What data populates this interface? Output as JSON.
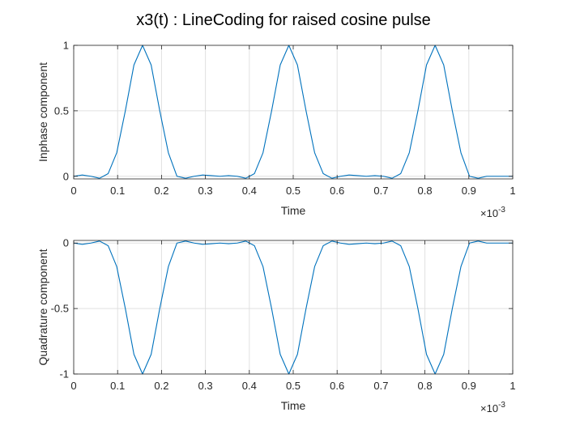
{
  "figure": {
    "title": "x3(t) : LineCoding for raised cosine pulse",
    "line_color": "#0072BD",
    "grid_color": "#e0e0e0",
    "axis_color": "#262626"
  },
  "chart_data": [
    {
      "type": "line",
      "name": "inphase",
      "xlabel": "Time",
      "ylabel": "Inphase component",
      "x_exponent_base": "×10",
      "x_exponent_power": "-3",
      "xlim": [
        0,
        0.001
      ],
      "ylim": [
        -0.02,
        1
      ],
      "xticks": [
        0,
        0.0001,
        0.0002,
        0.0003,
        0.0004,
        0.0005,
        0.0006,
        0.0007,
        0.0008,
        0.0009,
        0.001
      ],
      "xtick_labels": [
        "0",
        "0.1",
        "0.2",
        "0.3",
        "0.4",
        "0.5",
        "0.6",
        "0.7",
        "0.8",
        "0.9",
        "1"
      ],
      "yticks": [
        0,
        0.5,
        1
      ],
      "ytick_labels": [
        "0",
        "0.5",
        "1"
      ],
      "grid": true,
      "x": [
        0,
        1.96e-05,
        3.92e-05,
        5.88e-05,
        7.84e-05,
        9.8e-05,
        0.0001176,
        0.0001372,
        0.0001568,
        0.0001764,
        0.000196,
        0.0002156,
        0.0002352,
        0.0002548,
        0.0002744,
        0.000294,
        0.0003136,
        0.0003332,
        0.0003528,
        0.0003724,
        0.000392,
        0.0004116,
        0.0004312,
        0.0004508,
        0.0004704,
        0.00049,
        0.0005096,
        0.0005292,
        0.0005488,
        0.0005684,
        0.000588,
        0.0006076,
        0.0006272,
        0.0006468,
        0.0006664,
        0.000686,
        0.0007056,
        0.0007252,
        0.0007448,
        0.0007644,
        0.000784,
        0.0008036,
        0.0008232,
        0.0008428,
        0.0008624,
        0.000882,
        0.0009016,
        0.0009212,
        0.0009408,
        0.0009604,
        0.00098,
        0.001
      ],
      "y": [
        0,
        0.01,
        0,
        -0.015,
        0.02,
        0.18,
        0.5,
        0.85,
        1.0,
        0.85,
        0.5,
        0.18,
        0.0,
        -0.015,
        0.0,
        0.01,
        0.005,
        0.0,
        0.005,
        0.0,
        -0.015,
        0.02,
        0.18,
        0.5,
        0.85,
        1.0,
        0.85,
        0.5,
        0.18,
        0.02,
        -0.015,
        0.0,
        0.01,
        0.005,
        0.0,
        0.005,
        0.0,
        -0.015,
        0.02,
        0.18,
        0.5,
        0.85,
        1.0,
        0.85,
        0.5,
        0.18,
        0.0,
        -0.015,
        0.0,
        0.0,
        0.0,
        0.0
      ]
    },
    {
      "type": "line",
      "name": "quadrature",
      "xlabel": "Time",
      "ylabel": "Quadrature component",
      "x_exponent_base": "×10",
      "x_exponent_power": "-3",
      "xlim": [
        0,
        0.001
      ],
      "ylim": [
        -1,
        0.02
      ],
      "xticks": [
        0,
        0.0001,
        0.0002,
        0.0003,
        0.0004,
        0.0005,
        0.0006,
        0.0007,
        0.0008,
        0.0009,
        0.001
      ],
      "xtick_labels": [
        "0",
        "0.1",
        "0.2",
        "0.3",
        "0.4",
        "0.5",
        "0.6",
        "0.7",
        "0.8",
        "0.9",
        "1"
      ],
      "yticks": [
        -1,
        -0.5,
        0
      ],
      "ytick_labels": [
        "-1",
        "-0.5",
        "0"
      ],
      "grid": true,
      "x": [
        0,
        1.96e-05,
        3.92e-05,
        5.88e-05,
        7.84e-05,
        9.8e-05,
        0.0001176,
        0.0001372,
        0.0001568,
        0.0001764,
        0.000196,
        0.0002156,
        0.0002352,
        0.0002548,
        0.0002744,
        0.000294,
        0.0003136,
        0.0003332,
        0.0003528,
        0.0003724,
        0.000392,
        0.0004116,
        0.0004312,
        0.0004508,
        0.0004704,
        0.00049,
        0.0005096,
        0.0005292,
        0.0005488,
        0.0005684,
        0.000588,
        0.0006076,
        0.0006272,
        0.0006468,
        0.0006664,
        0.000686,
        0.0007056,
        0.0007252,
        0.0007448,
        0.0007644,
        0.000784,
        0.0008036,
        0.0008232,
        0.0008428,
        0.0008624,
        0.000882,
        0.0009016,
        0.0009212,
        0.0009408,
        0.0009604,
        0.00098,
        0.001
      ],
      "y": [
        0,
        -0.01,
        0,
        0.015,
        -0.02,
        -0.18,
        -0.5,
        -0.85,
        -1.0,
        -0.85,
        -0.5,
        -0.18,
        0.0,
        0.015,
        0.0,
        -0.01,
        -0.005,
        0.0,
        -0.005,
        0.0,
        0.015,
        -0.02,
        -0.18,
        -0.5,
        -0.85,
        -1.0,
        -0.85,
        -0.5,
        -0.18,
        -0.02,
        0.015,
        0.0,
        -0.01,
        -0.005,
        0.0,
        -0.005,
        0.0,
        0.015,
        -0.02,
        -0.18,
        -0.5,
        -0.85,
        -1.0,
        -0.85,
        -0.5,
        -0.18,
        0.0,
        0.015,
        0.0,
        0.0,
        0.0,
        0.0
      ]
    }
  ]
}
